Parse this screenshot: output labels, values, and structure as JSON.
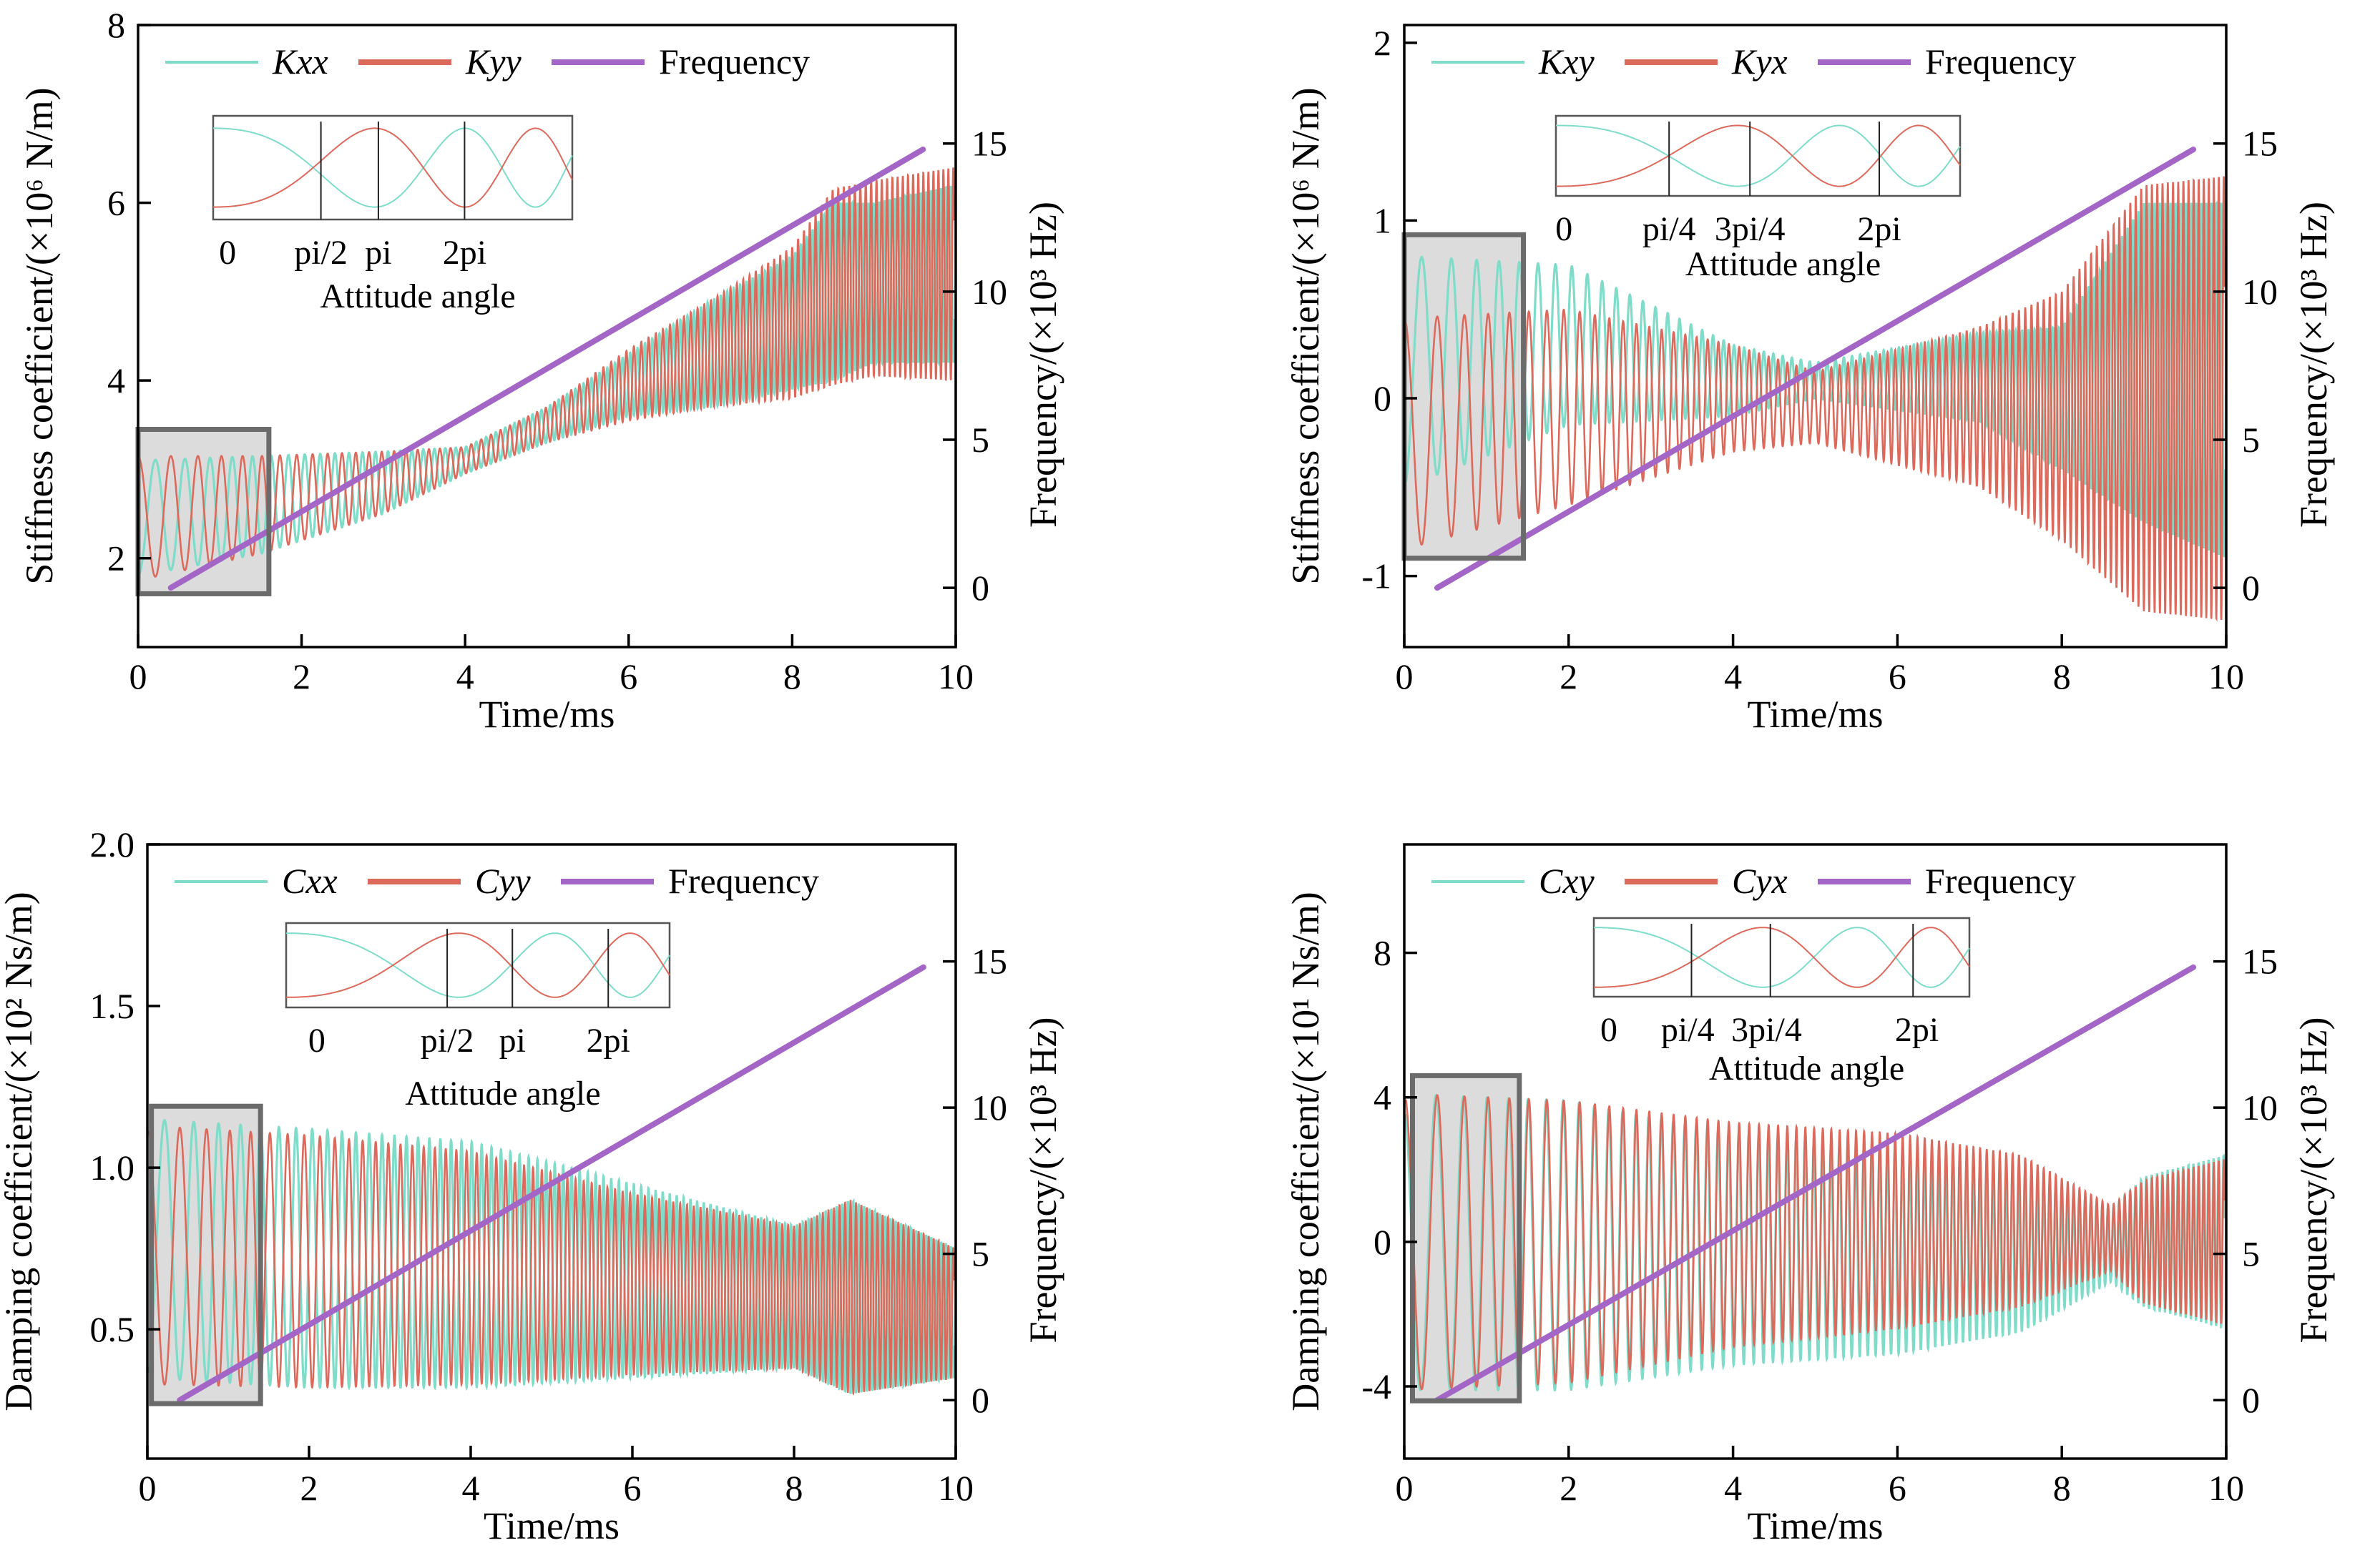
{
  "colors": {
    "series_a": "#7fdcc9",
    "series_b": "#dc6a5c",
    "frequency": "#a466c6",
    "box_fill": "#dcdcdc",
    "box_stroke": "#6b6b6b"
  },
  "chart_data": [
    {
      "id": "stiffness-direct",
      "type": "line",
      "xlabel": "Time/ms",
      "ylabel": "Stiffness coefficient/(×10⁶ N/m)",
      "y2label": "Frequency/(×10³ Hz)",
      "xlim": [
        0,
        10
      ],
      "ylim": [
        1,
        8
      ],
      "y2lim": [
        -2,
        19
      ],
      "xticks": [
        "0",
        "2",
        "4",
        "6",
        "8",
        "10"
      ],
      "yticks": [
        "2",
        "4",
        "6",
        "8"
      ],
      "y2ticks": [
        "0",
        "5",
        "10",
        "15"
      ],
      "legend": [
        "Kxx",
        "Kyy",
        "Frequency"
      ],
      "series": [
        {
          "name": "Kxx",
          "kind": "oscillation",
          "phase": 3.14,
          "env": [
            [
              0,
              2.45,
              0.65
            ],
            [
              1.5,
              2.6,
              0.55
            ],
            [
              3,
              2.85,
              0.35
            ],
            [
              4,
              3.1,
              0.15
            ],
            [
              5,
              3.5,
              0.2
            ],
            [
              6,
              3.95,
              0.35
            ],
            [
              7,
              4.3,
              0.6
            ],
            [
              8,
              4.65,
              0.75
            ],
            [
              8.5,
              5,
              1.0
            ],
            [
              9,
              5.1,
              0.9
            ],
            [
              10,
              5.2,
              1.0
            ]
          ]
        },
        {
          "name": "Kyy",
          "kind": "oscillation",
          "phase": 0,
          "env": [
            [
              0,
              2.45,
              0.7
            ],
            [
              1.5,
              2.6,
              0.55
            ],
            [
              3,
              2.85,
              0.35
            ],
            [
              4,
              3.1,
              0.15
            ],
            [
              5,
              3.5,
              0.2
            ],
            [
              6,
              3.95,
              0.4
            ],
            [
              7,
              4.3,
              0.6
            ],
            [
              8,
              4.65,
              0.85
            ],
            [
              8.5,
              5.05,
              1.1
            ],
            [
              9,
              5.15,
              1.1
            ],
            [
              10,
              5.2,
              1.2
            ]
          ]
        },
        {
          "name": "Frequency",
          "x": [
            0.4,
            9.6
          ],
          "y2": [
            0,
            14.8
          ]
        }
      ],
      "inset": {
        "label": "Attitude angle",
        "ticks": [
          "0",
          "pi/2",
          "pi",
          "2pi"
        ]
      },
      "highlight": {
        "x": [
          0,
          1.6
        ],
        "y": [
          1.6,
          3.45
        ]
      }
    },
    {
      "id": "stiffness-cross",
      "type": "line",
      "xlabel": "Time/ms",
      "ylabel": "Stiffness coefficient/(×10⁶ N/m)",
      "y2label": "Frequency/(×10³ Hz)",
      "xlim": [
        0,
        10
      ],
      "ylim": [
        -1.4,
        2.1
      ],
      "y2lim": [
        -2,
        19
      ],
      "xticks": [
        "0",
        "2",
        "4",
        "6",
        "8",
        "10"
      ],
      "yticks": [
        "-1",
        "0",
        "1",
        "2"
      ],
      "y2ticks": [
        "0",
        "5",
        "10",
        "15"
      ],
      "legend": [
        "Kxy",
        "Kyx",
        "Frequency"
      ],
      "series": [
        {
          "name": "Kxy",
          "kind": "oscillation",
          "phase": 3.14,
          "env": [
            [
              0,
              0.15,
              0.65
            ],
            [
              2,
              0.3,
              0.45
            ],
            [
              4,
              0.1,
              0.2
            ],
            [
              5,
              0.1,
              0.1
            ],
            [
              7,
              0.12,
              0.25
            ],
            [
              8,
              0.0,
              0.4
            ],
            [
              9,
              0.2,
              0.9
            ],
            [
              10,
              0.1,
              1.0
            ]
          ]
        },
        {
          "name": "Kyx",
          "kind": "oscillation",
          "phase": 0,
          "env": [
            [
              0,
              -0.2,
              0.65
            ],
            [
              2,
              -0.05,
              0.55
            ],
            [
              4,
              0.0,
              0.3
            ],
            [
              5,
              -0.05,
              0.2
            ],
            [
              7,
              -0.05,
              0.45
            ],
            [
              8,
              -0.1,
              0.7
            ],
            [
              9,
              0.0,
              1.2
            ],
            [
              10,
              0.0,
              1.25
            ]
          ]
        },
        {
          "name": "Frequency",
          "x": [
            0.4,
            9.6
          ],
          "y2": [
            0,
            14.8
          ]
        }
      ],
      "inset": {
        "label": "Attitude angle",
        "ticks": [
          "0",
          "pi/4",
          "3pi/4",
          "2pi"
        ]
      },
      "highlight": {
        "x": [
          0,
          1.45
        ],
        "y": [
          -0.9,
          0.92
        ]
      }
    },
    {
      "id": "damping-direct",
      "type": "line",
      "xlabel": "Time/ms",
      "ylabel": "Damping coefficient/(×10² Ns/m)",
      "y2label": "Frequency/(×10³ Hz)",
      "xlim": [
        0,
        10
      ],
      "ylim": [
        0.1,
        2.0
      ],
      "y2lim": [
        -2,
        19
      ],
      "xticks": [
        "0",
        "2",
        "4",
        "6",
        "8",
        "10"
      ],
      "yticks": [
        "0.5",
        "1.0",
        "1.5",
        "2.0"
      ],
      "y2ticks": [
        "0",
        "5",
        "10",
        "15"
      ],
      "legend": [
        "Cxx",
        "Cyy",
        "Frequency"
      ],
      "series": [
        {
          "name": "Cxx",
          "kind": "oscillation",
          "phase": 3.14,
          "env": [
            [
              0,
              0.75,
              0.4
            ],
            [
              2,
              0.72,
              0.4
            ],
            [
              4,
              0.7,
              0.38
            ],
            [
              6,
              0.65,
              0.3
            ],
            [
              8,
              0.6,
              0.22
            ],
            [
              8.7,
              0.6,
              0.3
            ],
            [
              10,
              0.55,
              0.2
            ]
          ]
        },
        {
          "name": "Cyy",
          "kind": "oscillation",
          "phase": 0,
          "env": [
            [
              0,
              0.73,
              0.4
            ],
            [
              2,
              0.71,
              0.39
            ],
            [
              4,
              0.69,
              0.36
            ],
            [
              6,
              0.64,
              0.28
            ],
            [
              8,
              0.6,
              0.22
            ],
            [
              8.7,
              0.6,
              0.3
            ],
            [
              10,
              0.55,
              0.2
            ]
          ]
        },
        {
          "name": "Frequency",
          "x": [
            0.4,
            9.6
          ],
          "y2": [
            0,
            14.8
          ]
        }
      ],
      "inset": {
        "label": "Attitude angle",
        "ticks": [
          "0",
          "pi/2",
          "pi",
          "2pi"
        ]
      },
      "highlight": {
        "x": [
          0.05,
          1.4
        ],
        "y": [
          0.27,
          1.19
        ]
      }
    },
    {
      "id": "damping-cross",
      "type": "line",
      "xlabel": "Time/ms",
      "ylabel": "Damping coefficient/(×10¹ Ns/m)",
      "y2label": "Frequency/(×10³ Hz)",
      "xlim": [
        0,
        10
      ],
      "ylim": [
        -6,
        11
      ],
      "y2lim": [
        -2,
        19
      ],
      "xticks": [
        "0",
        "2",
        "4",
        "6",
        "8",
        "10"
      ],
      "yticks": [
        "-4",
        "0",
        "4",
        "8"
      ],
      "y2ticks": [
        "0",
        "5",
        "10",
        "15"
      ],
      "legend": [
        "Cxy",
        "Cyx",
        "Frequency"
      ],
      "series": [
        {
          "name": "Cxy",
          "kind": "oscillation",
          "phase": 0.25,
          "env": [
            [
              0,
              0,
              4.1
            ],
            [
              2,
              -0.1,
              4.0
            ],
            [
              4,
              -0.2,
              3.2
            ],
            [
              6,
              -0.3,
              2.8
            ],
            [
              7.5,
              -0.3,
              2.2
            ],
            [
              8.6,
              -0.1,
              1.0
            ],
            [
              9,
              0,
              1.8
            ],
            [
              10,
              0,
              2.4
            ]
          ]
        },
        {
          "name": "Cyx",
          "kind": "oscillation",
          "phase": 0,
          "env": [
            [
              0,
              0,
              4.1
            ],
            [
              2,
              0,
              3.9
            ],
            [
              4,
              0.2,
              3.1
            ],
            [
              6,
              0.3,
              2.7
            ],
            [
              7.5,
              0.3,
              2.1
            ],
            [
              8.6,
              0.1,
              0.9
            ],
            [
              9,
              0,
              1.7
            ],
            [
              10,
              0,
              2.3
            ]
          ]
        },
        {
          "name": "Frequency",
          "x": [
            0.4,
            9.6
          ],
          "y2": [
            0,
            14.8
          ]
        }
      ],
      "inset": {
        "label": "Attitude angle",
        "ticks": [
          "0",
          "pi/4",
          "3pi/4",
          "2pi"
        ]
      },
      "highlight": {
        "x": [
          0.1,
          1.4
        ],
        "y": [
          -4.4,
          4.6
        ]
      }
    }
  ]
}
